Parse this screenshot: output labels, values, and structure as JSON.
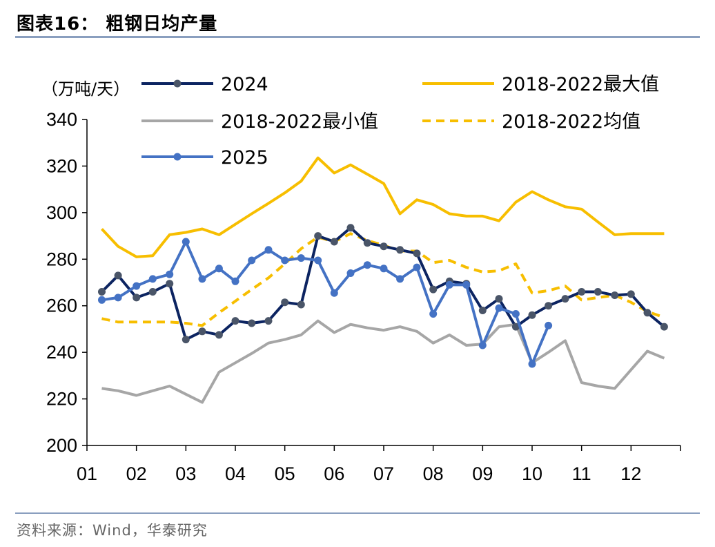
{
  "header": {
    "title": "图表16：  粗钢日均产量"
  },
  "footer": {
    "source": "资料来源：Wind，华泰研究"
  },
  "chart_data": {
    "type": "line",
    "title": "粗钢日均产量",
    "ylabel": "（万吨/天）",
    "xlabel": "",
    "ylim": [
      200,
      340
    ],
    "yticks": [
      200,
      220,
      240,
      260,
      280,
      300,
      320,
      340
    ],
    "xlim": [
      1,
      13
    ],
    "xticks": [
      {
        "value": 1,
        "label": "01"
      },
      {
        "value": 2,
        "label": "02"
      },
      {
        "value": 3,
        "label": "03"
      },
      {
        "value": 4,
        "label": "04"
      },
      {
        "value": 5,
        "label": "05"
      },
      {
        "value": 6,
        "label": "06"
      },
      {
        "value": 7,
        "label": "07"
      },
      {
        "value": 8,
        "label": "08"
      },
      {
        "value": 9,
        "label": "09"
      },
      {
        "value": 10,
        "label": "10"
      },
      {
        "value": 11,
        "label": "11"
      },
      {
        "value": 12,
        "label": "12"
      }
    ],
    "grid": false,
    "legend_position": "top",
    "series": [
      {
        "name": "2024",
        "color": "#0c2461",
        "style": "solid",
        "markers": true,
        "x": [
          1.3,
          1.63,
          2.0,
          2.33,
          2.67,
          3.0,
          3.33,
          3.67,
          4.0,
          4.33,
          4.67,
          5.0,
          5.33,
          5.67,
          6.0,
          6.33,
          6.67,
          7.0,
          7.33,
          7.67,
          8.0,
          8.33,
          8.67,
          9.0,
          9.33,
          9.67,
          10.0,
          10.33,
          10.67,
          11.0,
          11.33,
          11.67,
          12.0,
          12.33,
          12.67
        ],
        "y": [
          266,
          273,
          263.5,
          266,
          269.5,
          245.5,
          249,
          247.5,
          253.5,
          252.5,
          253.5,
          261.5,
          260.5,
          290,
          287.5,
          293.5,
          287,
          285.5,
          284,
          282.5,
          267,
          270.5,
          269.5,
          258,
          263,
          251,
          256,
          260,
          263,
          266,
          266,
          264.5,
          265,
          257,
          251
        ]
      },
      {
        "name": "2018-2022最大值",
        "color": "#f7be00",
        "style": "solid",
        "markers": false,
        "x": [
          1.3,
          1.63,
          2.0,
          2.33,
          2.67,
          3.0,
          3.33,
          3.67,
          4.0,
          4.33,
          4.67,
          5.0,
          5.33,
          5.67,
          6.0,
          6.33,
          6.67,
          7.0,
          7.33,
          7.67,
          8.0,
          8.33,
          8.67,
          9.0,
          9.33,
          9.67,
          10.0,
          10.33,
          10.67,
          11.0,
          11.33,
          11.67,
          12.0,
          12.33,
          12.67
        ],
        "y": [
          293,
          285.5,
          281,
          281.5,
          290.5,
          291.5,
          293,
          290.5,
          295,
          299.5,
          304,
          308.5,
          313.5,
          323.5,
          317,
          320.5,
          316.5,
          312.5,
          299.5,
          305.5,
          303.5,
          299.5,
          298.5,
          298.5,
          296.5,
          304.5,
          309,
          305.5,
          302.5,
          301.5,
          296,
          290.5,
          291,
          291,
          291
        ]
      },
      {
        "name": "2018-2022最小值",
        "color": "#a6a6a6",
        "style": "solid",
        "markers": false,
        "x": [
          1.3,
          1.63,
          2.0,
          2.33,
          2.67,
          3.0,
          3.33,
          3.67,
          4.0,
          4.33,
          4.67,
          5.0,
          5.33,
          5.67,
          6.0,
          6.33,
          6.67,
          7.0,
          7.33,
          7.67,
          8.0,
          8.33,
          8.67,
          9.0,
          9.33,
          9.67,
          10.0,
          10.33,
          10.67,
          11.0,
          11.33,
          11.67,
          12.0,
          12.33,
          12.67
        ],
        "y": [
          224.5,
          223.5,
          221.5,
          223.5,
          225.5,
          222,
          218.5,
          231.5,
          235.5,
          239.5,
          244,
          245.5,
          247.5,
          253.5,
          248.5,
          252,
          250.5,
          249.5,
          251,
          249,
          244,
          247.5,
          243,
          243.5,
          251,
          252,
          235.5,
          240,
          245,
          227,
          225.5,
          224.5,
          232.5,
          240.5,
          237.5
        ]
      },
      {
        "name": "2018-2022均值",
        "color": "#f7be00",
        "style": "dashed",
        "markers": false,
        "x": [
          1.3,
          1.63,
          2.0,
          2.33,
          2.67,
          3.0,
          3.33,
          3.67,
          4.0,
          4.33,
          4.67,
          5.0,
          5.33,
          5.67,
          6.0,
          6.33,
          6.67,
          7.0,
          7.33,
          7.67,
          8.0,
          8.33,
          8.67,
          9.0,
          9.33,
          9.67,
          10.0,
          10.33,
          10.67,
          11.0,
          11.33,
          11.67,
          12.0,
          12.33,
          12.67
        ],
        "y": [
          254.5,
          253,
          253,
          253,
          253,
          252.5,
          251.5,
          257,
          262,
          267,
          272,
          278,
          284.5,
          289.5,
          287.5,
          291,
          288,
          286,
          283.5,
          283.5,
          278.5,
          279.5,
          276.5,
          274.5,
          275,
          278,
          265.5,
          266.5,
          268.5,
          262.5,
          263.5,
          264.5,
          261.5,
          257.5,
          255
        ]
      },
      {
        "name": "2025",
        "color": "#4472c4",
        "style": "solid",
        "markers": true,
        "x": [
          1.3,
          1.63,
          2.0,
          2.33,
          2.67,
          3.0,
          3.33,
          3.67,
          4.0,
          4.33,
          4.67,
          5.0,
          5.33,
          5.67,
          6.0,
          6.33,
          6.67,
          7.0,
          7.33,
          7.67,
          8.0,
          8.33,
          8.67,
          9.0,
          9.33,
          9.67,
          10.0,
          10.33
        ],
        "y": [
          262.5,
          263.5,
          268.5,
          271.5,
          273.5,
          287.5,
          271.5,
          276,
          270.5,
          279.5,
          284,
          279.5,
          280.5,
          279.5,
          265.5,
          274,
          277.5,
          276,
          271.5,
          276.5,
          256.5,
          269,
          269,
          243,
          259,
          256.5,
          235,
          251.5
        ]
      }
    ],
    "legend": [
      {
        "series": 0,
        "label": "2024"
      },
      {
        "series": 1,
        "label": "2018-2022最大值"
      },
      {
        "series": 2,
        "label": "2018-2022最小值"
      },
      {
        "series": 3,
        "label": "2018-2022均值"
      },
      {
        "series": 4,
        "label": "2025"
      }
    ]
  }
}
